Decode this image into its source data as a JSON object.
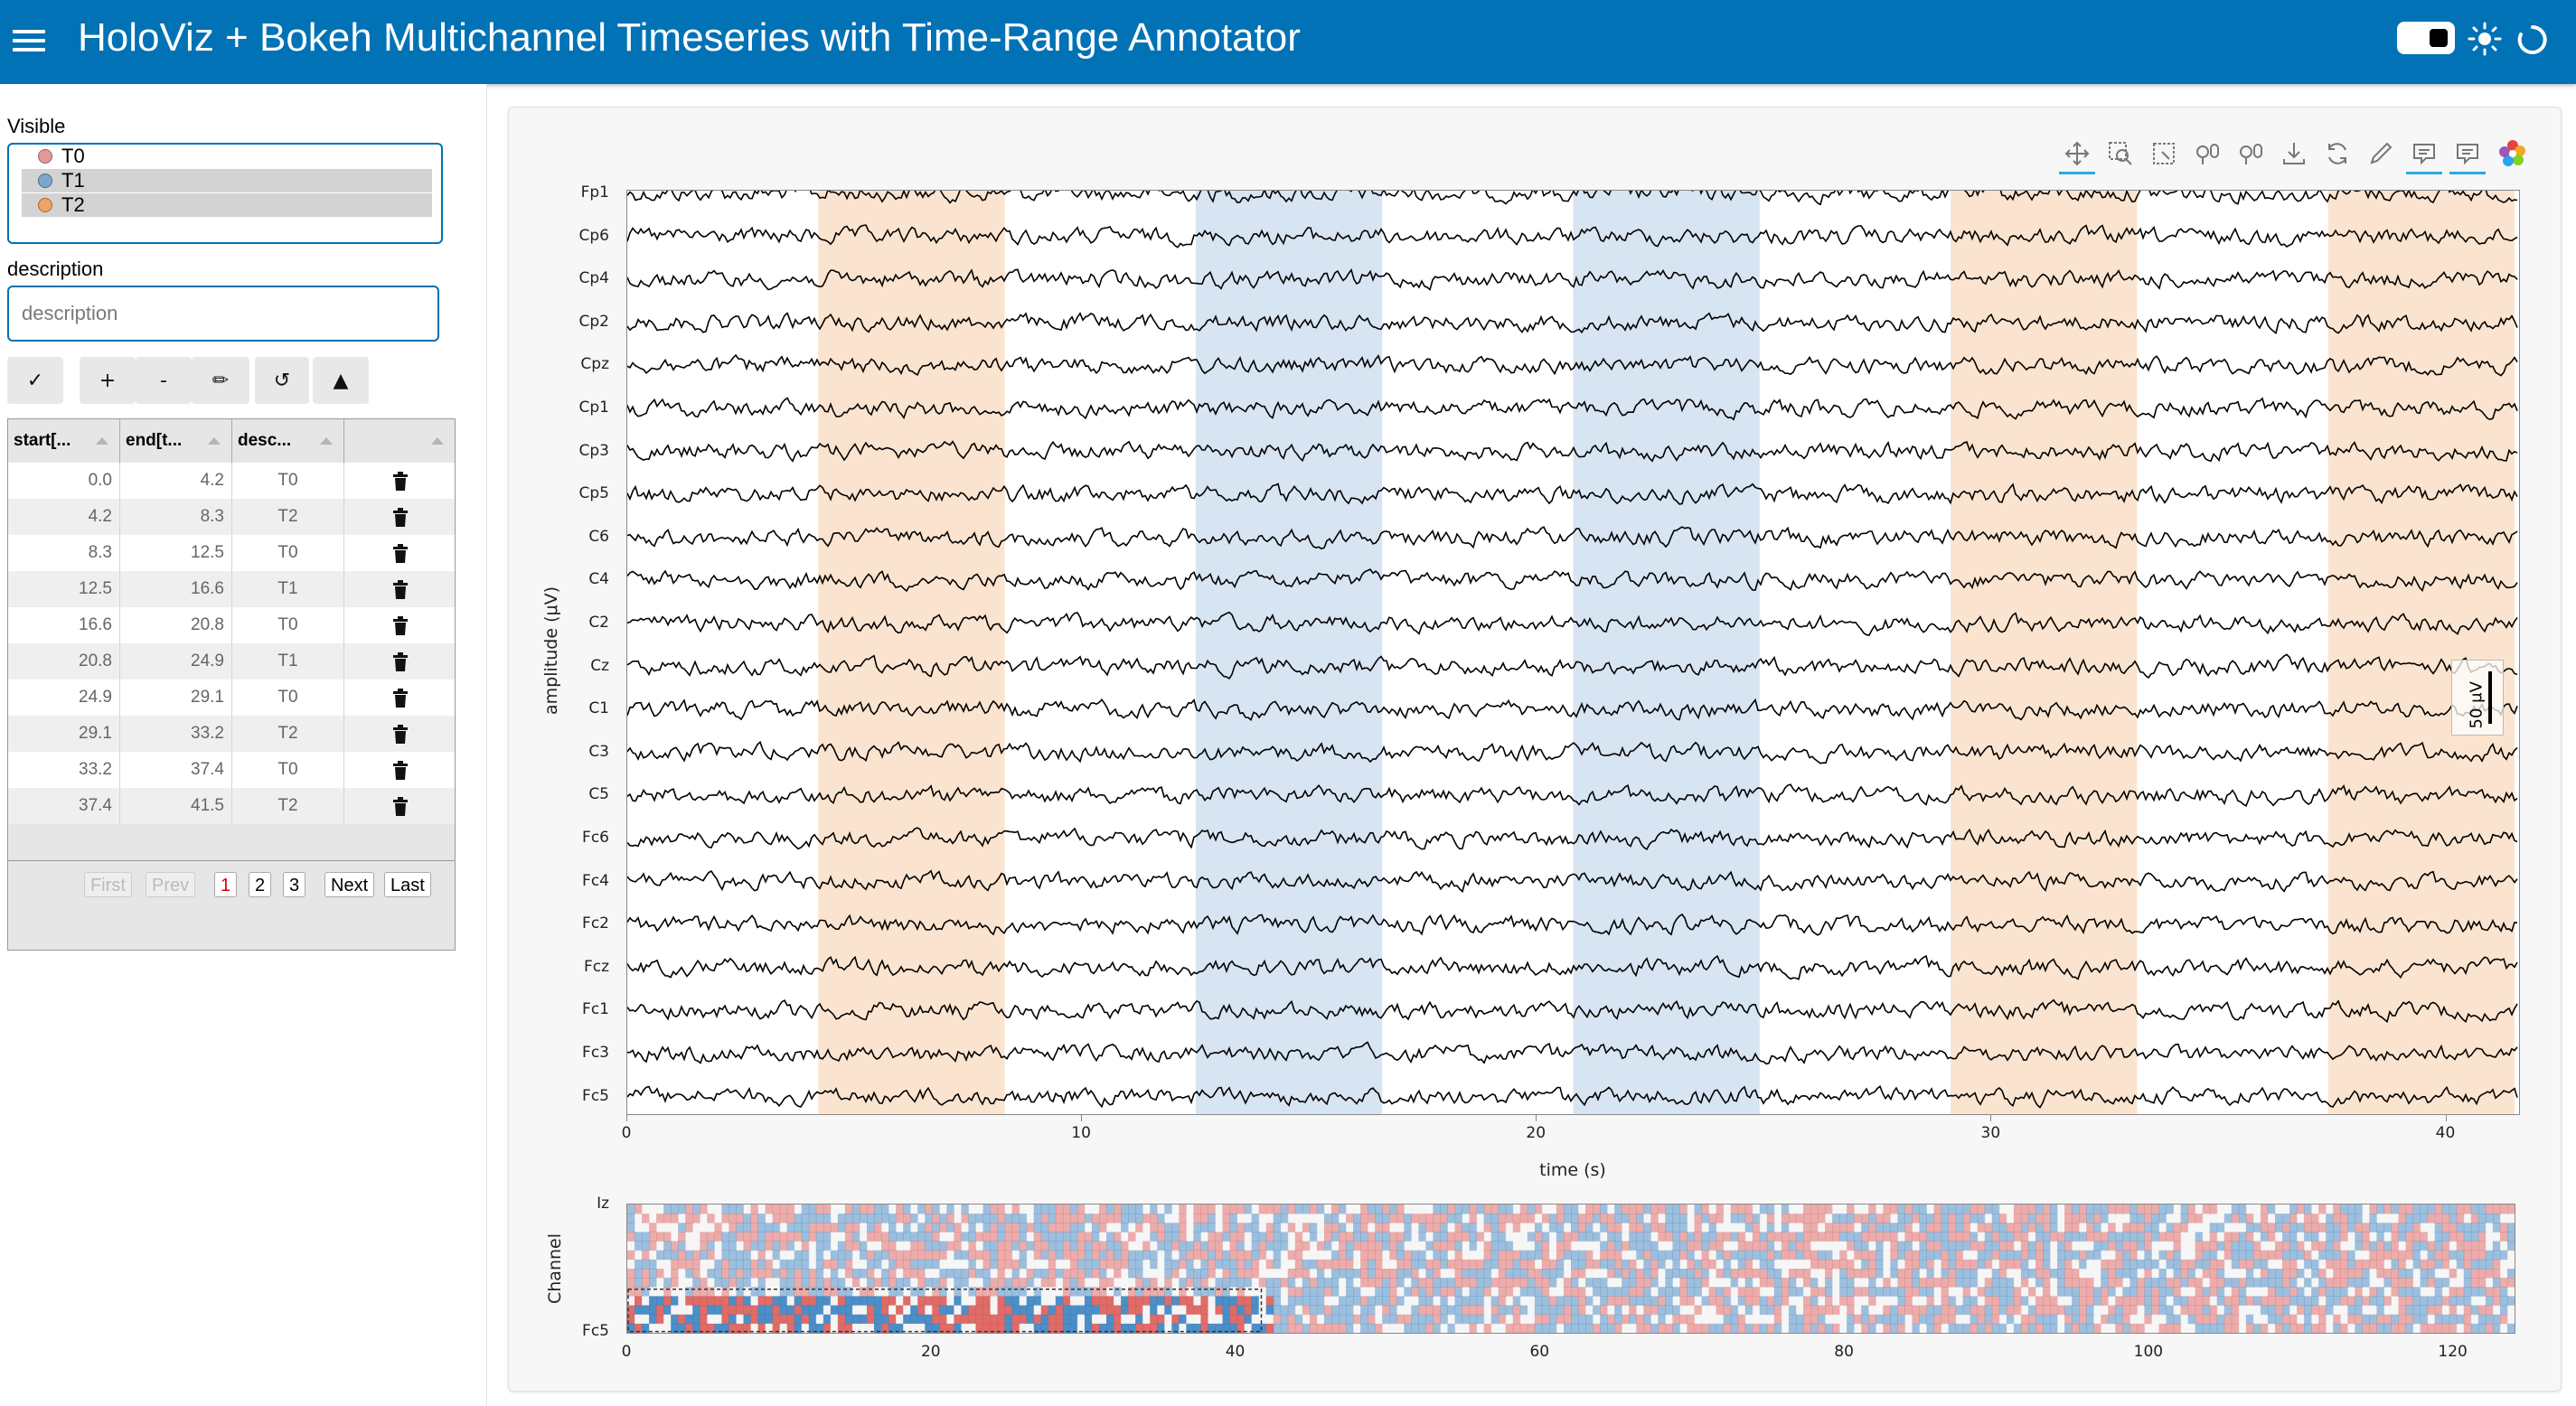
{
  "header": {
    "title": "HoloViz + Bokeh Multichannel Timeseries with Time-Range Annotator",
    "bg_color": "#0072b5",
    "icons": [
      "menu-icon",
      "theme-toggle",
      "sun-icon",
      "spinner-icon"
    ]
  },
  "sidebar": {
    "visible_label": "Visible",
    "visible_options": [
      {
        "label": "T0",
        "color": "#e4989a",
        "selected": false
      },
      {
        "label": "T1",
        "color": "#7ba7cf",
        "selected": true
      },
      {
        "label": "T2",
        "color": "#f1a461",
        "selected": true
      }
    ],
    "description_label": "description",
    "description_placeholder": "description",
    "description_value": "",
    "buttons": [
      {
        "label": "✓",
        "icon": "check-icon"
      },
      {
        "label": "+",
        "icon": "plus-icon"
      },
      {
        "label": "-",
        "icon": "minus-icon"
      },
      {
        "label": "✏",
        "icon": "pencil-icon"
      },
      {
        "label": "↺",
        "icon": "undo-icon"
      },
      {
        "label": "▲",
        "icon": "triangle-up-icon"
      }
    ],
    "table": {
      "columns": [
        "start[...",
        "end[t...",
        "desc...",
        ""
      ],
      "rows": [
        {
          "start": "0.0",
          "end": "4.2",
          "desc": "T0"
        },
        {
          "start": "4.2",
          "end": "8.3",
          "desc": "T2"
        },
        {
          "start": "8.3",
          "end": "12.5",
          "desc": "T0"
        },
        {
          "start": "12.5",
          "end": "16.6",
          "desc": "T1"
        },
        {
          "start": "16.6",
          "end": "20.8",
          "desc": "T0"
        },
        {
          "start": "20.8",
          "end": "24.9",
          "desc": "T1"
        },
        {
          "start": "24.9",
          "end": "29.1",
          "desc": "T0"
        },
        {
          "start": "29.1",
          "end": "33.2",
          "desc": "T2"
        },
        {
          "start": "33.2",
          "end": "37.4",
          "desc": "T0"
        },
        {
          "start": "37.4",
          "end": "41.5",
          "desc": "T2"
        }
      ],
      "pager": {
        "first": "First",
        "prev": "Prev",
        "pages": [
          "1",
          "2",
          "3"
        ],
        "current_page": "1",
        "next": "Next",
        "last": "Last"
      }
    }
  },
  "toolbar": {
    "tools": [
      "pan-icon",
      "box-zoom-icon",
      "box-select-icon",
      "xwheel-zoom-icon",
      "ywheel-zoom-icon",
      "save-icon",
      "reset-icon",
      "edit-icon",
      "hover-icon",
      "hover-icon-2",
      "bokeh-logo"
    ],
    "active": [
      "pan-icon",
      "hover-icon",
      "hover-icon-2"
    ]
  },
  "chart_data": [
    {
      "type": "line",
      "xlabel": "time (s)",
      "ylabel": "amplitude (μV)",
      "xlim": [
        0,
        41.6
      ],
      "xticks": [
        "0",
        "10",
        "20",
        "30",
        "40"
      ],
      "channels": [
        "Fp1",
        "Cp6",
        "Cp4",
        "Cp2",
        "Cpz",
        "Cp1",
        "Cp3",
        "Cp5",
        "C6",
        "C4",
        "C2",
        "Cz",
        "C1",
        "C3",
        "C5",
        "Fc6",
        "Fc4",
        "Fc2",
        "Fcz",
        "Fc1",
        "Fc3",
        "Fc5"
      ],
      "annotations": [
        {
          "start": 4.2,
          "end": 8.3,
          "desc": "T2",
          "color": "#f1a461"
        },
        {
          "start": 12.5,
          "end": 16.6,
          "desc": "T1",
          "color": "#7ba7cf"
        },
        {
          "start": 20.8,
          "end": 24.9,
          "desc": "T1",
          "color": "#7ba7cf"
        },
        {
          "start": 29.1,
          "end": 33.2,
          "desc": "T2",
          "color": "#f1a461"
        },
        {
          "start": 37.4,
          "end": 41.5,
          "desc": "T2",
          "color": "#f1a461"
        }
      ],
      "scale_bar": "50 μV",
      "line_color": "#000000"
    },
    {
      "type": "heatmap",
      "ylabel": "Channel",
      "xlim": [
        0,
        124
      ],
      "xticks": [
        "0",
        "20",
        "40",
        "60",
        "80",
        "100",
        "120"
      ],
      "yticks": [
        "Iz",
        "Fc5"
      ],
      "colormap": [
        "#2f7bbd",
        "#f4f4f4",
        "#d9534f"
      ],
      "viewport": {
        "x_start": 0,
        "x_end": 41.6
      }
    }
  ]
}
